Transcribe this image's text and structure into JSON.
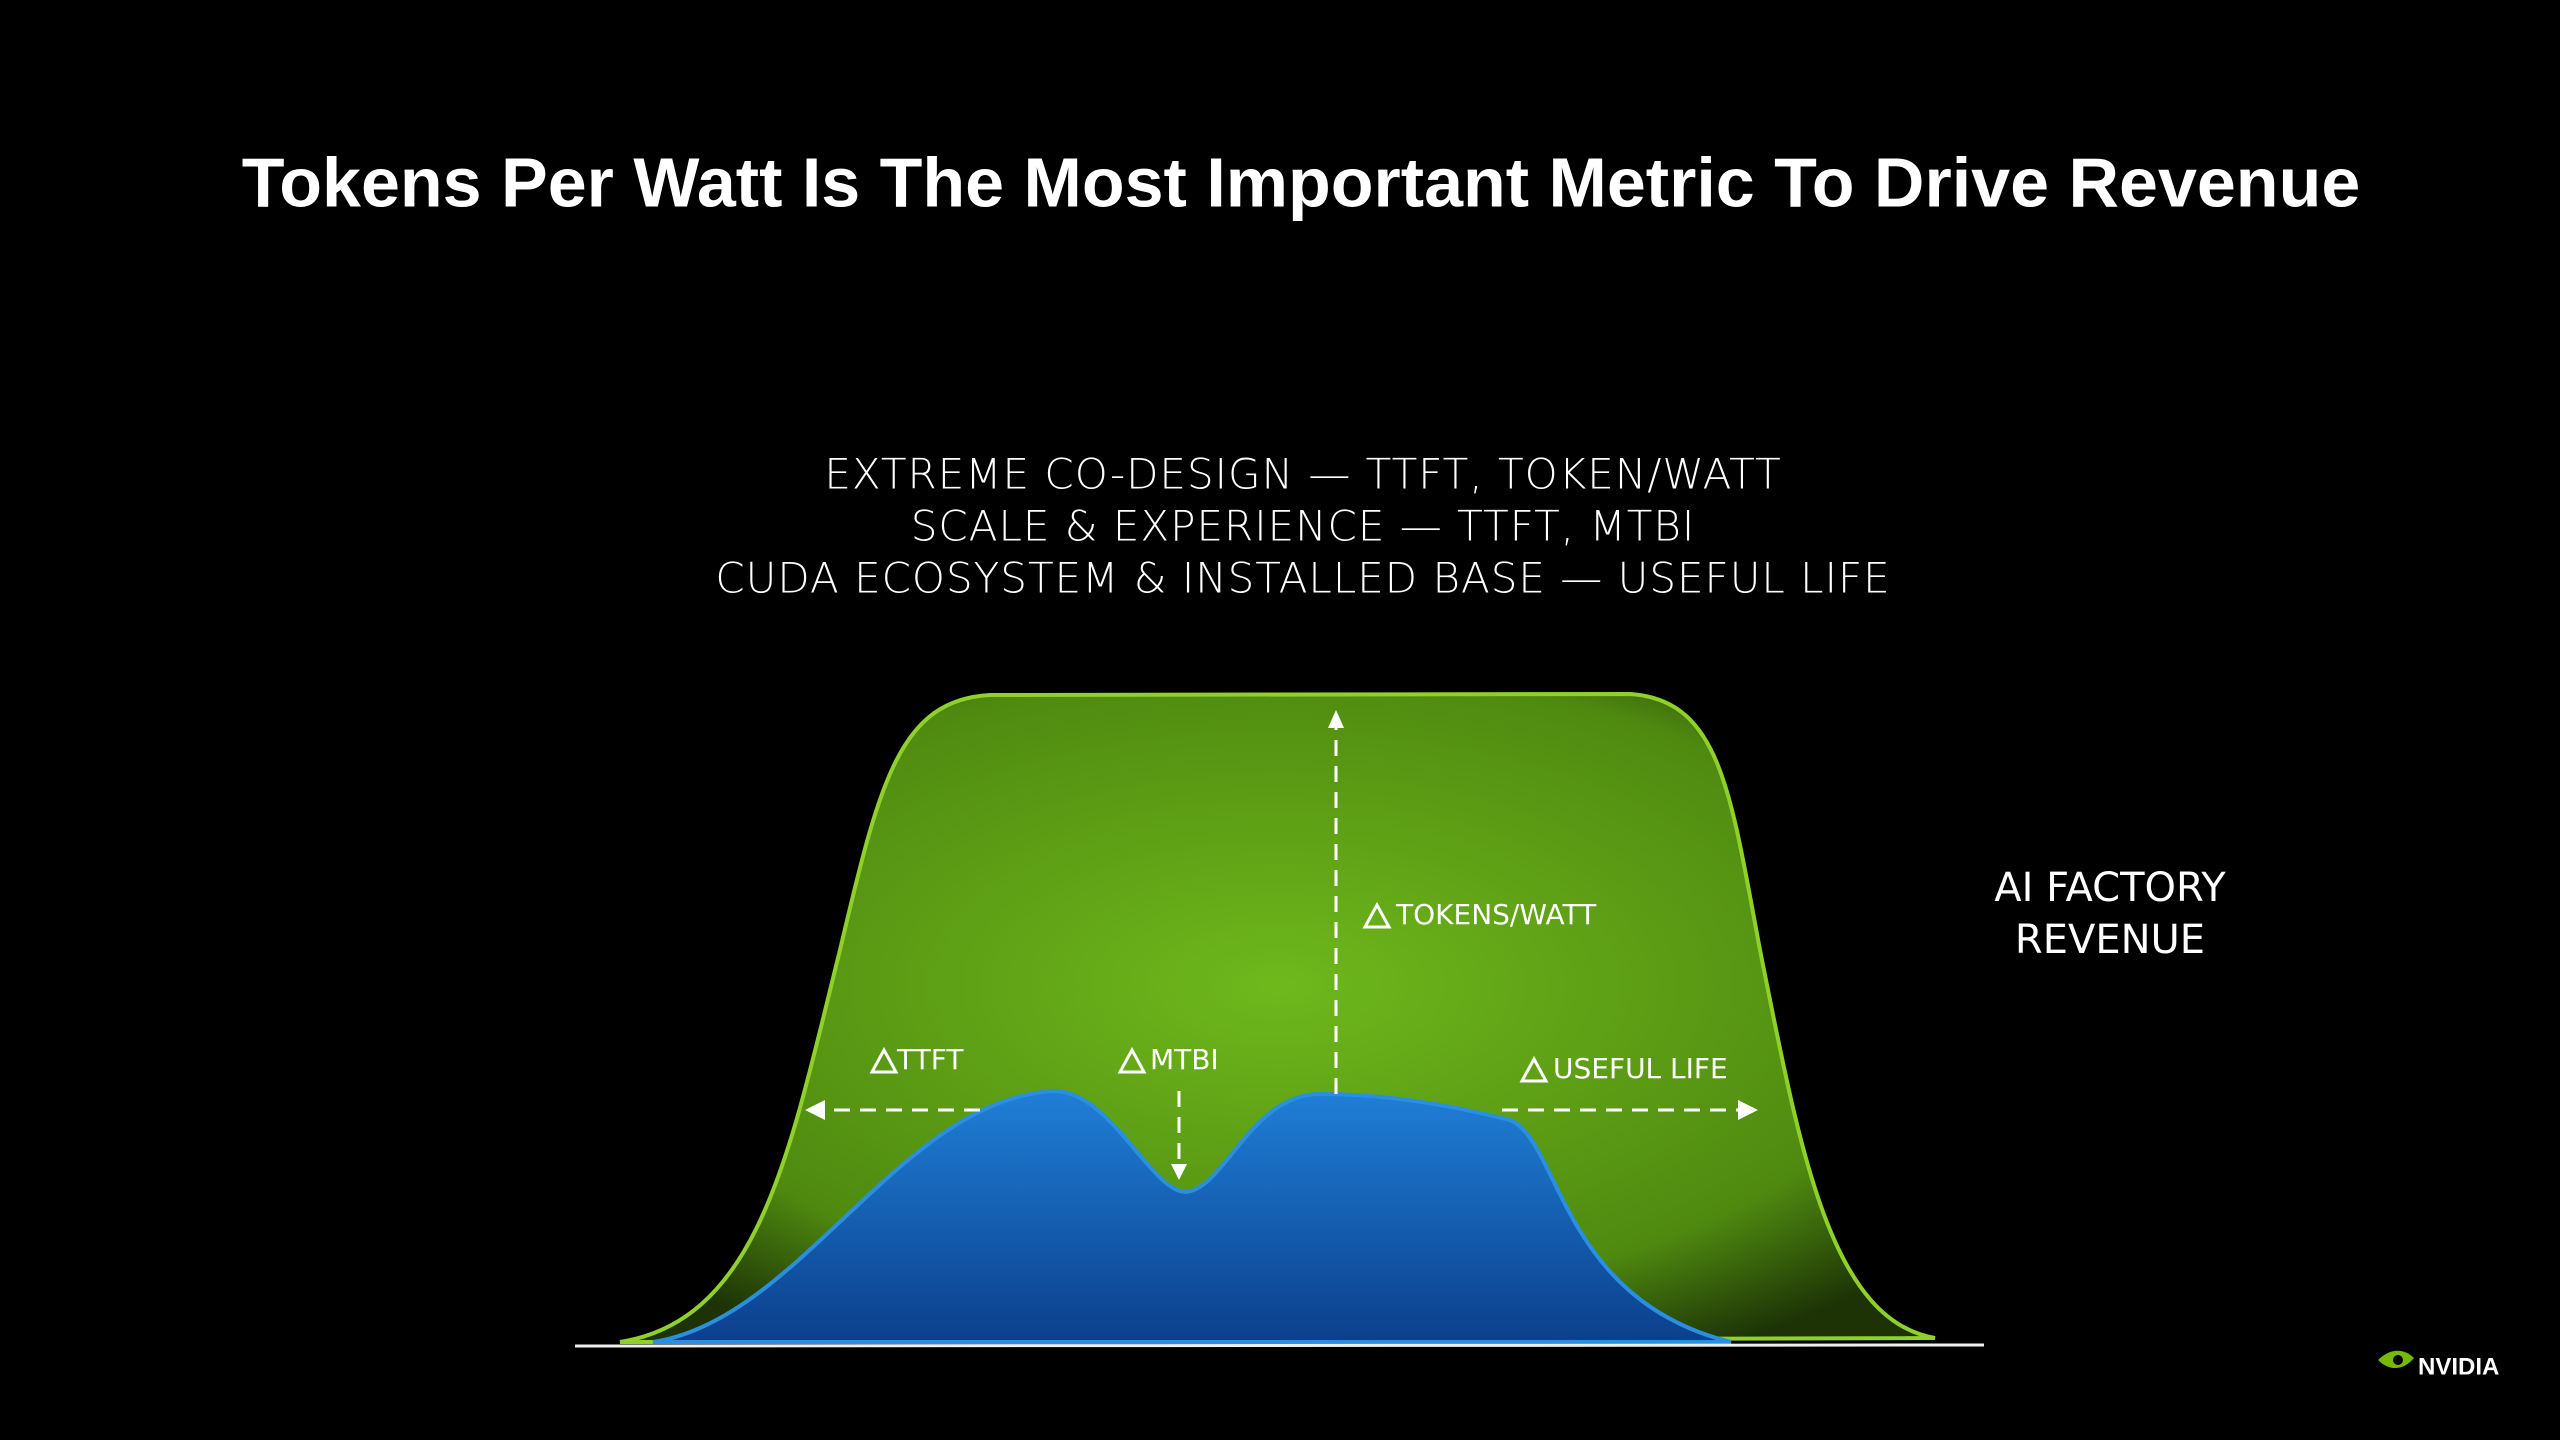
{
  "header": {
    "title": "Tokens Per Watt Is The Most Important Metric To Drive Revenue"
  },
  "subtitle": [
    "EXTREME CO-DESIGN — TTFT, TOKEN/WATT",
    "SCALE & EXPERIENCE — TTFT, MTBI",
    "CUDA ECOSYSTEM & INSTALLED BASE — USEFUL LIFE"
  ],
  "diagram": {
    "labels": [
      "TTFT",
      "MTBI",
      "TOKENS/WATT",
      "USEFUL LIFE"
    ],
    "side_label": [
      "AI FACTORY",
      "REVENUE"
    ]
  },
  "footer": {
    "logo": "NVIDIA"
  }
}
